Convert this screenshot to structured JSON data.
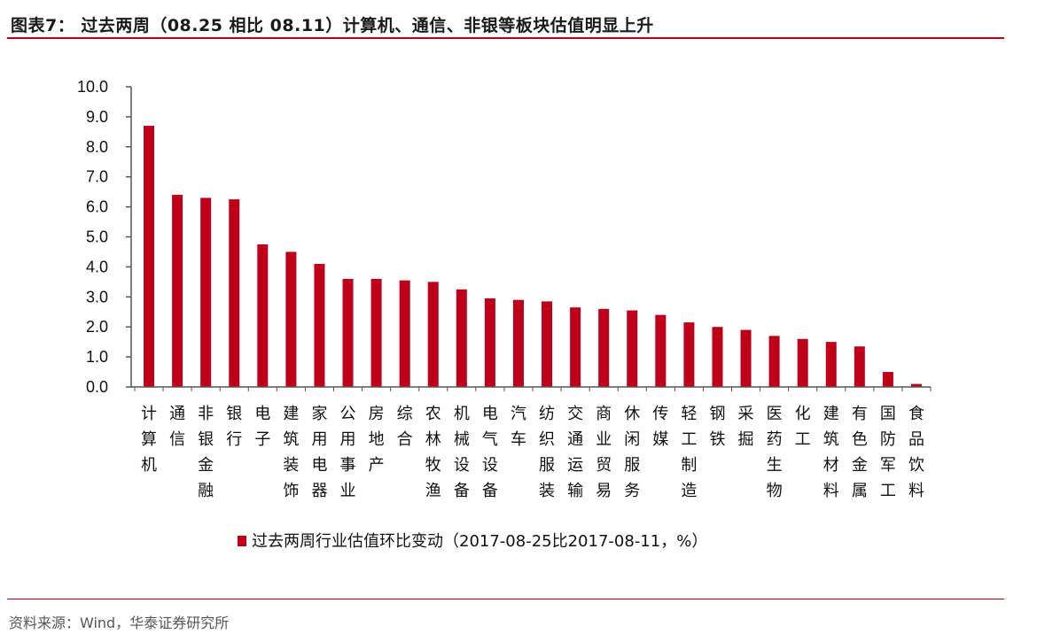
{
  "header": {
    "title": "图表7：  过去两周（08.25 相比 08.11）计算机、通信、非银等板块估值明显上升"
  },
  "source": {
    "text": "资料来源：Wind，华泰证券研究所"
  },
  "colors": {
    "bar": "#c00018",
    "rule": "#c0001a"
  },
  "chart_data": {
    "type": "bar",
    "title": "",
    "xlabel": "",
    "ylabel": "",
    "ylim": [
      0,
      10
    ],
    "yticks": [
      "0.0",
      "1.0",
      "2.0",
      "3.0",
      "4.0",
      "5.0",
      "6.0",
      "7.0",
      "8.0",
      "9.0",
      "10.0"
    ],
    "grid": false,
    "legend_position": "bottom",
    "categories": [
      "计算机",
      "通信",
      "非银金融",
      "银行",
      "电子",
      "建筑装饰",
      "家用电器",
      "公用事业",
      "房地产",
      "综合",
      "农林牧渔",
      "机械设备",
      "电气设备",
      "汽车",
      "纺织服装",
      "交通运输",
      "商业贸易",
      "休闲服务",
      "传媒",
      "轻工制造",
      "钢铁",
      "采掘",
      "医药生物",
      "化工",
      "建筑材料",
      "有色金属",
      "国防军工",
      "食品饮料"
    ],
    "series": [
      {
        "name": "过去两周行业估值环比变动（2017-08-25比2017-08-11，%）",
        "values": [
          8.7,
          6.4,
          6.3,
          6.25,
          4.75,
          4.5,
          4.1,
          3.6,
          3.6,
          3.55,
          3.5,
          3.25,
          2.95,
          2.9,
          2.85,
          2.65,
          2.6,
          2.55,
          2.4,
          2.15,
          2.0,
          1.9,
          1.7,
          1.6,
          1.5,
          1.35,
          0.5,
          0.1
        ]
      }
    ]
  }
}
